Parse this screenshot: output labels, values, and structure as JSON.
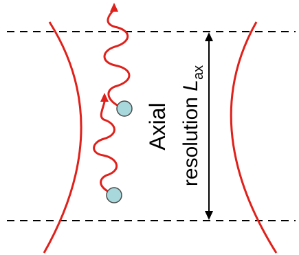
{
  "labels": {
    "axial": "Axial",
    "resolution": "resolution ",
    "symbol": "L",
    "subscript": "ax"
  },
  "colors": {
    "beam": "#e0201a",
    "lines": "#000000",
    "particle_fill": "#a8d8dc",
    "particle_stroke": "#4a4a4a",
    "background": "#ffffff"
  }
}
